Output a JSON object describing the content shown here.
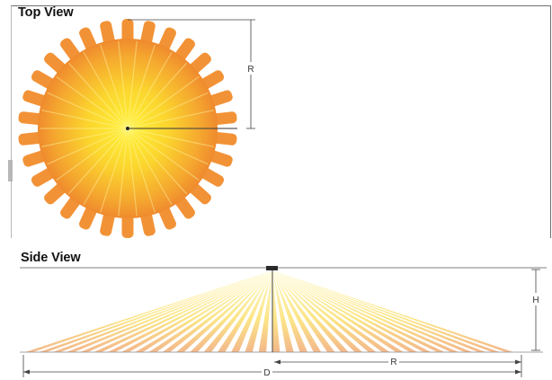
{
  "top_view": {
    "title": "Top View",
    "radius_label": "R",
    "lobe_count": 30,
    "colors": {
      "center": "#fff23a",
      "mid": "#f7b92c",
      "edge": "#ef8a2e",
      "lobe": "#f29236"
    }
  },
  "side_view": {
    "title": "Side View",
    "height_label": "H",
    "radius_label": "R",
    "diameter_label": "D",
    "beam_count": 36,
    "colors": {
      "beam_light": "#fff6a8",
      "beam_mid": "#fbe07a",
      "beam_far": "#f4b28c",
      "sensor": "#2b2b2b"
    }
  }
}
